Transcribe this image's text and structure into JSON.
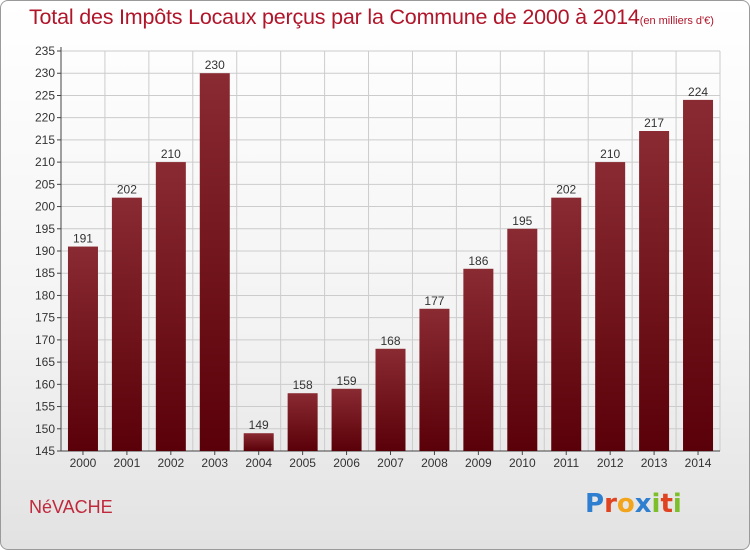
{
  "header": {
    "title": "Total des Impôts Locaux perçus par la Commune de 2000 à 2014",
    "unit": "(en milliers d'€)"
  },
  "footer": {
    "commune": "NéVACHE",
    "logo_letters": [
      "P",
      "r",
      "o",
      "x",
      "i",
      "t",
      "i"
    ]
  },
  "colors": {
    "title": "#b0152a",
    "bar_top": "#8a2a32",
    "bar_bottom": "#5a0008",
    "grid": "#cccccc"
  },
  "chart_data": {
    "type": "bar",
    "title": "Total des Impôts Locaux perçus par la Commune de 2000 à 2014",
    "xlabel": "",
    "ylabel": "en milliers d'€",
    "categories": [
      "2000",
      "2001",
      "2002",
      "2003",
      "2004",
      "2005",
      "2006",
      "2007",
      "2008",
      "2009",
      "2010",
      "2011",
      "2012",
      "2013",
      "2014"
    ],
    "values": [
      191,
      202,
      210,
      230,
      149,
      158,
      159,
      168,
      177,
      186,
      195,
      202,
      210,
      217,
      224
    ],
    "ylim": [
      145,
      235
    ],
    "yticks": [
      145,
      150,
      155,
      160,
      165,
      170,
      175,
      180,
      185,
      190,
      195,
      200,
      205,
      210,
      215,
      220,
      225,
      230,
      235
    ],
    "grid": true
  }
}
